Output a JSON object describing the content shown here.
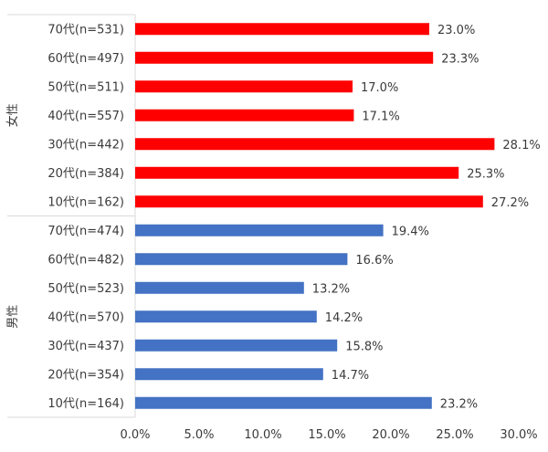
{
  "chart_data": {
    "type": "bar",
    "orientation": "horizontal",
    "xlim": [
      0,
      30
    ],
    "xticks": [
      "0.0%",
      "5.0%",
      "10.0%",
      "15.0%",
      "20.0%",
      "25.0%",
      "30.0%"
    ],
    "grid": false,
    "legend": "none",
    "groups": [
      {
        "label": "女性",
        "color": "#ff0000",
        "categories": [
          "70代(n=531)",
          "60代(n=497)",
          "50代(n=511)",
          "40代(n=557)",
          "30代(n=442)",
          "20代(n=384)",
          "10代(n=162)"
        ],
        "values": [
          23.0,
          23.3,
          17.0,
          17.1,
          28.1,
          25.3,
          27.2
        ],
        "value_labels": [
          "23.0%",
          "23.3%",
          "17.0%",
          "17.1%",
          "28.1%",
          "25.3%",
          "27.2%"
        ]
      },
      {
        "label": "男性",
        "color": "#4472c4",
        "categories": [
          "70代(n=474)",
          "60代(n=482)",
          "50代(n=523)",
          "40代(n=570)",
          "30代(n=437)",
          "20代(n=354)",
          "10代(n=164)"
        ],
        "values": [
          19.4,
          16.6,
          13.2,
          14.2,
          15.8,
          14.7,
          23.2
        ],
        "value_labels": [
          "19.4%",
          "16.6%",
          "13.2%",
          "14.2%",
          "15.8%",
          "14.7%",
          "23.2%"
        ]
      }
    ]
  }
}
